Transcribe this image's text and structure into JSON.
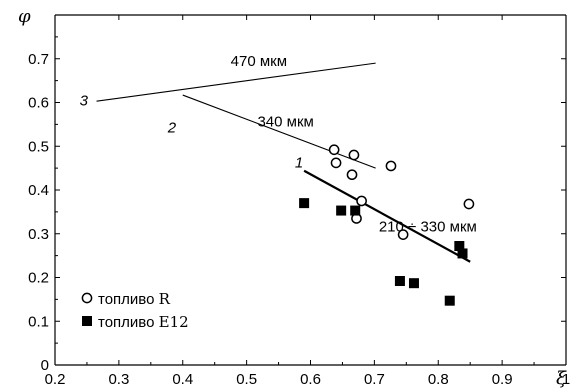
{
  "chart_data": {
    "type": "scatter",
    "x_axis": {
      "label": "ξ",
      "range": [
        0.2,
        1.0
      ],
      "ticks": [
        "0.2",
        "0.3",
        "0.4",
        "0.5",
        "0.6",
        "0.7",
        "0.8",
        "0.9",
        "1"
      ]
    },
    "y_axis": {
      "label": "φ",
      "range": [
        0,
        0.8
      ],
      "ticks": [
        "0",
        "0.1",
        "0.2",
        "0.3",
        "0.4",
        "0.5",
        "0.6",
        "0.7"
      ]
    },
    "grid": false,
    "legend_position": "bottom-left",
    "series": [
      {
        "name": "топливо",
        "code": "R",
        "marker": "open-circle",
        "points": [
          [
            0.637,
            0.492
          ],
          [
            0.64,
            0.462
          ],
          [
            0.668,
            0.48
          ],
          [
            0.665,
            0.435
          ],
          [
            0.726,
            0.455
          ],
          [
            0.68,
            0.375
          ],
          [
            0.672,
            0.335
          ],
          [
            0.745,
            0.298
          ],
          [
            0.848,
            0.368
          ]
        ]
      },
      {
        "name": "топливо",
        "code": "E12",
        "marker": "filled-square",
        "points": [
          [
            0.59,
            0.37
          ],
          [
            0.648,
            0.353
          ],
          [
            0.67,
            0.353
          ],
          [
            0.74,
            0.192
          ],
          [
            0.762,
            0.187
          ],
          [
            0.818,
            0.147
          ],
          [
            0.833,
            0.272
          ],
          [
            0.838,
            0.255
          ]
        ]
      }
    ],
    "trend_lines": [
      {
        "id": "1",
        "annotation": "210 ÷ 330 мкм",
        "points": [
          [
            0.59,
            0.444
          ],
          [
            0.85,
            0.236
          ]
        ]
      },
      {
        "id": "2",
        "annotation": "340 мкм",
        "points": [
          [
            0.4,
            0.617
          ],
          [
            0.702,
            0.45
          ]
        ]
      },
      {
        "id": "3",
        "annotation": "470 мкм",
        "points": [
          [
            0.265,
            0.603
          ],
          [
            0.702,
            0.69
          ]
        ]
      }
    ]
  }
}
